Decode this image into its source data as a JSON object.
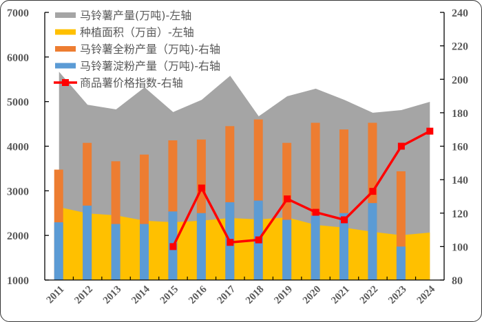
{
  "chart_data": {
    "type": "bar",
    "title": "",
    "xlabel": "",
    "ylabel_left": "",
    "ylabel_right": "",
    "categories": [
      "2011",
      "2012",
      "2013",
      "2014",
      "2015",
      "2016",
      "2017",
      "2018",
      "2019",
      "2020",
      "2021",
      "2022",
      "2023",
      "2024"
    ],
    "left_axis": {
      "ylim": [
        1000,
        7000
      ],
      "ticks": [
        1000,
        2000,
        3000,
        4000,
        5000,
        6000,
        7000
      ]
    },
    "right_axis": {
      "ylim": [
        80,
        240
      ],
      "ticks": [
        80,
        100,
        120,
        140,
        160,
        180,
        200,
        220,
        240
      ]
    },
    "grid": false,
    "legend_position": "top-left inside",
    "series": [
      {
        "name": "马铃薯产量(万吨)-左轴",
        "type": "area",
        "axis": "left",
        "color": "#A5A5A5",
        "values": [
          5670,
          4930,
          4825,
          5320,
          4765,
          5040,
          5580,
          4670,
          5120,
          5290,
          5040,
          4750,
          4810,
          4995
        ]
      },
      {
        "name": "种植面积（万亩）-左轴",
        "type": "area",
        "axis": "left",
        "color": "#FFC000",
        "values": [
          2635,
          2495,
          2450,
          2330,
          2295,
          2330,
          2390,
          2360,
          2405,
          2235,
          2175,
          2080,
          2005,
          2065
        ]
      },
      {
        "name": "马铃薯全粉产量（万吨)-右轴",
        "type": "bar",
        "axis": "right",
        "color": "#ED7D31",
        "values": [
          146,
          162,
          151,
          155,
          163.5,
          164,
          172,
          176,
          162,
          174,
          170,
          174,
          145,
          null
        ]
      },
      {
        "name": "马铃薯淀粉产量（万吨)-右轴",
        "type": "bar",
        "axis": "right",
        "color": "#5B9BD5",
        "values": [
          114.5,
          124.5,
          113.5,
          113.5,
          121,
          120,
          126.5,
          127.5,
          116,
          118.5,
          120,
          126,
          100,
          null
        ]
      },
      {
        "name": "商品薯价格指数-右轴",
        "type": "line",
        "axis": "right",
        "color": "#FF0000",
        "marker": "square",
        "values": [
          null,
          null,
          null,
          null,
          100,
          135,
          102.5,
          104,
          128.5,
          120.5,
          116,
          133,
          160,
          169
        ]
      }
    ]
  },
  "legend": {
    "items": [
      {
        "label": "马铃薯产量(万吨)-左轴",
        "swatch": "area",
        "color": "#A5A5A5"
      },
      {
        "label": "种植面积（万亩）-左轴",
        "swatch": "area",
        "color": "#FFC000"
      },
      {
        "label": "马铃薯全粉产量（万吨)-右轴",
        "swatch": "bar",
        "color": "#ED7D31"
      },
      {
        "label": "马铃薯淀粉产量（万吨)-右轴",
        "swatch": "bar",
        "color": "#5B9BD5"
      },
      {
        "label": "商品薯价格指数-右轴",
        "swatch": "line",
        "color": "#FF0000"
      }
    ]
  }
}
